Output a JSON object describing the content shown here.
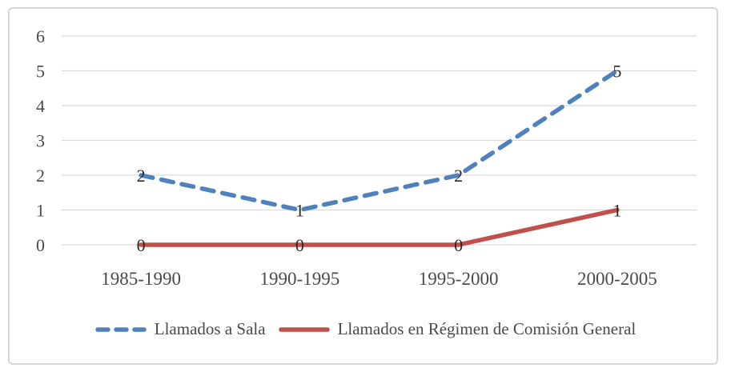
{
  "chart_data": {
    "type": "line",
    "categories": [
      "1985-1990",
      "1990-1995",
      "1995-2000",
      "2000-2005"
    ],
    "series": [
      {
        "name": "Llamados a Sala",
        "values": [
          2,
          1,
          2,
          5
        ],
        "color": "#4F81BD",
        "style": "dashed"
      },
      {
        "name": "Llamados en Régimen de Comisión General",
        "values": [
          0,
          0,
          0,
          1
        ],
        "color": "#C0504D",
        "style": "solid"
      }
    ],
    "title": "",
    "xlabel": "",
    "ylabel": "",
    "ylim": [
      0,
      6
    ],
    "yticks": [
      0,
      1,
      2,
      3,
      4,
      5,
      6
    ],
    "grid": true,
    "data_labels": true,
    "legend_position": "bottom"
  },
  "colors": {
    "gridline": "#D9D9D9",
    "axis_text": "#4A4A4A",
    "data_label_text": "#2B2B2B",
    "frame_border": "#D6D6D6",
    "background": "#FFFFFF"
  }
}
